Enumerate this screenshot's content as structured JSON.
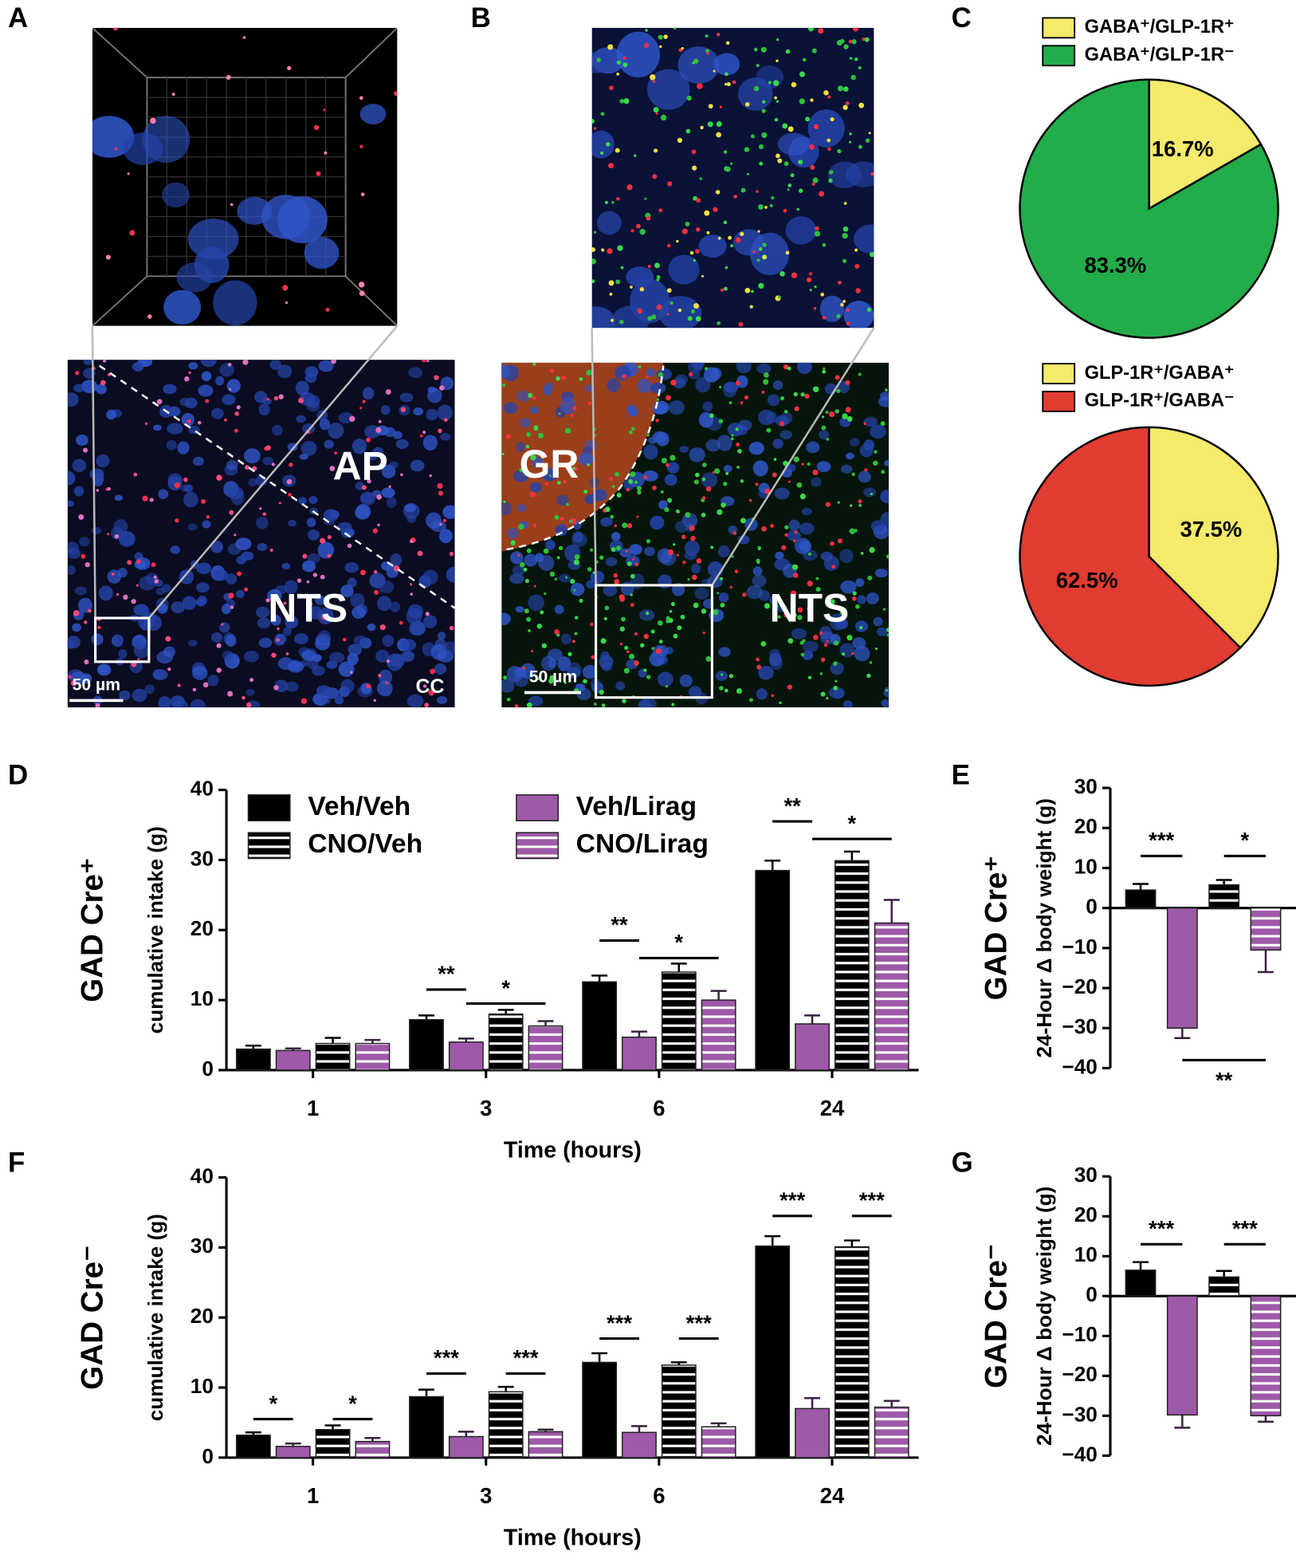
{
  "panel_labels": [
    "A",
    "B",
    "C",
    "D",
    "E",
    "F",
    "G"
  ],
  "micrographs": {
    "A": {
      "labels": [
        "AP",
        "NTS",
        "CC"
      ],
      "scale_bar": "50 µm"
    },
    "B": {
      "labels": [
        "GR",
        "NTS"
      ],
      "scale_bar": "50 µm"
    }
  },
  "chart_data": [
    {
      "type": "pie",
      "categories": [
        "GABA⁺/GLP-1R⁺",
        "GABA⁺/GLP-1R⁻"
      ],
      "values": [
        16.7,
        83.3
      ],
      "value_labels": [
        "16.7%",
        "83.3%"
      ],
      "colors": [
        "#f4ea6b",
        "#22ad4a"
      ]
    },
    {
      "type": "pie",
      "categories": [
        "GLP-1R⁺/GABA⁺",
        "GLP-1R⁺/GABA⁻"
      ],
      "values": [
        37.5,
        62.5
      ],
      "value_labels": [
        "37.5%",
        "62.5%"
      ],
      "colors": [
        "#f4ea6b",
        "#e03c31"
      ]
    },
    {
      "type": "bar",
      "side_label": "GAD Cre⁺",
      "y_label": "cumulative intake (g)",
      "x_label": "Time (hours)",
      "categories": [
        "1",
        "3",
        "6",
        "24"
      ],
      "ylim": [
        0,
        40
      ],
      "yticks": [
        0,
        10,
        20,
        30,
        40
      ],
      "legend": true,
      "series": [
        {
          "name": "Veh/Veh",
          "color": "#000000",
          "pattern": "solid",
          "values": [
            3.0,
            7.2,
            12.6,
            28.5
          ],
          "errors": [
            0.5,
            0.6,
            0.9,
            1.4
          ]
        },
        {
          "name": "Veh/Lirag",
          "color": "#9e5aa8",
          "pattern": "solid",
          "values": [
            2.8,
            4.0,
            4.7,
            6.6
          ],
          "errors": [
            0.3,
            0.5,
            0.8,
            1.2
          ]
        },
        {
          "name": "CNO/Veh",
          "color": "#000000",
          "pattern": "striped",
          "values": [
            3.8,
            8.0,
            14.0,
            29.9
          ],
          "errors": [
            0.8,
            0.6,
            1.2,
            1.3
          ]
        },
        {
          "name": "CNO/Lirag",
          "color": "#9e5aa8",
          "pattern": "striped",
          "values": [
            3.8,
            6.3,
            10.0,
            21.0
          ],
          "errors": [
            0.5,
            0.7,
            1.3,
            3.3
          ]
        }
      ],
      "significance": [
        {
          "label": "**",
          "category": 1,
          "series": [
            0,
            1
          ],
          "y": 11.5
        },
        {
          "label": "*",
          "category": 1,
          "series": [
            1,
            3
          ],
          "y": 9.5
        },
        {
          "label": "**",
          "category": 2,
          "series": [
            0,
            1
          ],
          "y": 18.5
        },
        {
          "label": "*",
          "category": 2,
          "series": [
            1,
            3
          ],
          "y": 16
        },
        {
          "label": "**",
          "category": 3,
          "series": [
            0,
            1
          ],
          "y": 35.5
        },
        {
          "label": "*",
          "category": 3,
          "series": [
            1,
            3
          ],
          "y": 33
        }
      ]
    },
    {
      "type": "bar",
      "side_label": "GAD Cre⁺",
      "y_label": "24-Hour Δ body weight (g)",
      "categories": [
        null
      ],
      "ylim": [
        -40,
        30
      ],
      "yticks": [
        {
          "value": -40,
          "label": "−40"
        },
        {
          "value": -30,
          "label": "−30"
        },
        {
          "value": -20,
          "label": "−20"
        },
        {
          "value": -10,
          "label": "−10"
        },
        0,
        10,
        20,
        30
      ],
      "series": [
        {
          "color": "#000000",
          "pattern": "solid",
          "values": [
            4.5
          ],
          "errors": [
            1.5
          ]
        },
        {
          "color": "#9e5aa8",
          "pattern": "solid",
          "values": [
            -30.0
          ],
          "errors": [
            2.5
          ]
        },
        {
          "color": "#000000",
          "pattern": "striped",
          "values": [
            5.8
          ],
          "errors": [
            1.2
          ]
        },
        {
          "color": "#9e5aa8",
          "pattern": "striped",
          "values": [
            -10.5
          ],
          "errors": [
            5.5
          ]
        }
      ],
      "significance": [
        {
          "label": "***",
          "category": 0,
          "series": [
            0,
            1
          ],
          "y": 13
        },
        {
          "label": "*",
          "category": 0,
          "series": [
            2,
            3
          ],
          "y": 13
        },
        {
          "label": "**",
          "category": 0,
          "series": [
            1,
            3
          ],
          "y": -38,
          "label_below": true
        }
      ]
    },
    {
      "type": "bar",
      "side_label": "GAD Cre⁻",
      "y_label": "cumulative intake (g)",
      "x_label": "Time (hours)",
      "categories": [
        "1",
        "3",
        "6",
        "24"
      ],
      "ylim": [
        0,
        40
      ],
      "yticks": [
        0,
        10,
        20,
        30,
        40
      ],
      "series": [
        {
          "color": "#000000",
          "pattern": "solid",
          "values": [
            3.2,
            8.7,
            13.6,
            30.2
          ],
          "errors": [
            0.4,
            1.0,
            1.3,
            1.4
          ]
        },
        {
          "color": "#9e5aa8",
          "pattern": "solid",
          "values": [
            1.6,
            3.0,
            3.6,
            7.0
          ],
          "errors": [
            0.4,
            0.7,
            0.9,
            1.5
          ]
        },
        {
          "color": "#000000",
          "pattern": "striped",
          "values": [
            4.0,
            9.4,
            13.2,
            30.1
          ],
          "errors": [
            0.6,
            0.7,
            0.4,
            0.9
          ]
        },
        {
          "color": "#9e5aa8",
          "pattern": "striped",
          "values": [
            2.3,
            3.7,
            4.4,
            7.2
          ],
          "errors": [
            0.5,
            0.3,
            0.5,
            0.9
          ]
        }
      ],
      "significance": [
        {
          "label": "*",
          "category": 0,
          "series": [
            0,
            1
          ],
          "y": 5.5
        },
        {
          "label": "*",
          "category": 0,
          "series": [
            2,
            3
          ],
          "y": 5.5
        },
        {
          "label": "***",
          "category": 1,
          "series": [
            0,
            1
          ],
          "y": 12
        },
        {
          "label": "***",
          "category": 1,
          "series": [
            2,
            3
          ],
          "y": 12
        },
        {
          "label": "***",
          "category": 2,
          "series": [
            0,
            1
          ],
          "y": 17
        },
        {
          "label": "***",
          "category": 2,
          "series": [
            2,
            3
          ],
          "y": 17
        },
        {
          "label": "***",
          "category": 3,
          "series": [
            0,
            1
          ],
          "y": 34.5
        },
        {
          "label": "***",
          "category": 3,
          "series": [
            2,
            3
          ],
          "y": 34.5
        }
      ]
    },
    {
      "type": "bar",
      "side_label": "GAD Cre⁻",
      "y_label": "24-Hour Δ body weight (g)",
      "categories": [
        null
      ],
      "ylim": [
        -40,
        30
      ],
      "yticks": [
        {
          "value": -40,
          "label": "−40"
        },
        {
          "value": -30,
          "label": "−30"
        },
        {
          "value": -20,
          "label": "−20"
        },
        {
          "value": -10,
          "label": "−10"
        },
        0,
        10,
        20,
        30
      ],
      "series": [
        {
          "color": "#000000",
          "pattern": "solid",
          "values": [
            6.5
          ],
          "errors": [
            2.0
          ]
        },
        {
          "color": "#9e5aa8",
          "pattern": "solid",
          "values": [
            -29.8
          ],
          "errors": [
            3.2
          ]
        },
        {
          "color": "#000000",
          "pattern": "striped",
          "values": [
            4.8
          ],
          "errors": [
            1.5
          ]
        },
        {
          "color": "#9e5aa8",
          "pattern": "striped",
          "values": [
            -30.0
          ],
          "errors": [
            1.5
          ]
        }
      ],
      "significance": [
        {
          "label": "***",
          "category": 0,
          "series": [
            0,
            1
          ],
          "y": 13
        },
        {
          "label": "***",
          "category": 0,
          "series": [
            2,
            3
          ],
          "y": 13
        }
      ]
    }
  ]
}
